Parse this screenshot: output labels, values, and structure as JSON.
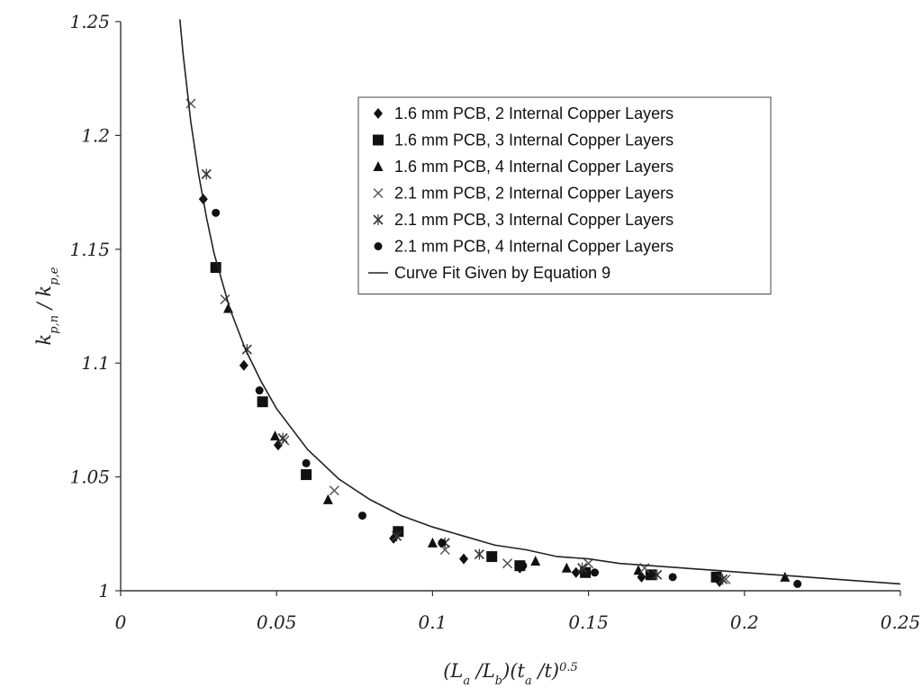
{
  "chart_data": {
    "type": "scatter",
    "title": "",
    "xlabel": {
      "parts": [
        "(L",
        "a",
        " /L",
        "b",
        ")(t",
        "a",
        " /t)",
        "0.5"
      ]
    },
    "ylabel": {
      "parts": [
        "k",
        "p,n",
        " / k",
        "p,e"
      ]
    },
    "xlim": [
      0,
      0.25
    ],
    "ylim": [
      1,
      1.25
    ],
    "x_ticks": [
      0,
      0.05,
      0.1,
      0.15,
      0.2,
      0.25
    ],
    "x_tick_labels": [
      "0",
      "0.05",
      "0.1",
      "0.15",
      "0.2",
      "0.25"
    ],
    "y_ticks": [
      1,
      1.05,
      1.1,
      1.15,
      1.2,
      1.25
    ],
    "y_tick_labels": [
      "1",
      "1.05",
      "1.1",
      "1.15",
      "1.2",
      "1.25"
    ],
    "grid": false,
    "legend_position": "top-right",
    "series": [
      {
        "name": "1.6 mm PCB, 2 Internal Copper Layers",
        "marker": "diamond",
        "points": [
          [
            0.0265,
            1.172
          ],
          [
            0.0395,
            1.099
          ],
          [
            0.0505,
            1.064
          ],
          [
            0.0875,
            1.023
          ],
          [
            0.11,
            1.014
          ],
          [
            0.128,
            1.01
          ],
          [
            0.146,
            1.008
          ],
          [
            0.167,
            1.006
          ],
          [
            0.192,
            1.004
          ]
        ]
      },
      {
        "name": "1.6 mm PCB, 3 Internal Copper Layers",
        "marker": "square",
        "points": [
          [
            0.0305,
            1.142
          ],
          [
            0.0455,
            1.083
          ],
          [
            0.0595,
            1.051
          ],
          [
            0.089,
            1.026
          ],
          [
            0.119,
            1.015
          ],
          [
            0.128,
            1.011
          ],
          [
            0.149,
            1.008
          ],
          [
            0.17,
            1.007
          ],
          [
            0.191,
            1.006
          ]
        ]
      },
      {
        "name": "1.6 mm PCB, 4 Internal Copper Layers",
        "marker": "triangle",
        "points": [
          [
            0.0345,
            1.124
          ],
          [
            0.0495,
            1.068
          ],
          [
            0.0665,
            1.04
          ],
          [
            0.1,
            1.021
          ],
          [
            0.133,
            1.013
          ],
          [
            0.143,
            1.01
          ],
          [
            0.166,
            1.009
          ],
          [
            0.213,
            1.006
          ]
        ]
      },
      {
        "name": "2.1 mm PCB, 2 Internal Copper Layers",
        "marker": "x",
        "points": [
          [
            0.0225,
            1.214
          ],
          [
            0.0335,
            1.128
          ],
          [
            0.0525,
            1.066
          ],
          [
            0.0685,
            1.044
          ],
          [
            0.104,
            1.018
          ],
          [
            0.124,
            1.012
          ],
          [
            0.15,
            1.012
          ],
          [
            0.168,
            1.01
          ],
          [
            0.194,
            1.005
          ]
        ]
      },
      {
        "name": "2.1 mm PCB, 3 Internal Copper Layers",
        "marker": "star",
        "points": [
          [
            0.0275,
            1.183
          ],
          [
            0.0405,
            1.106
          ],
          [
            0.052,
            1.067
          ],
          [
            0.0885,
            1.024
          ],
          [
            0.104,
            1.021
          ],
          [
            0.115,
            1.016
          ],
          [
            0.148,
            1.01
          ],
          [
            0.172,
            1.007
          ],
          [
            0.193,
            1.005
          ]
        ]
      },
      {
        "name": "2.1 mm PCB, 4 Internal Copper Layers",
        "marker": "dot",
        "points": [
          [
            0.0305,
            1.166
          ],
          [
            0.0445,
            1.088
          ],
          [
            0.0595,
            1.056
          ],
          [
            0.0775,
            1.033
          ],
          [
            0.103,
            1.021
          ],
          [
            0.129,
            1.011
          ],
          [
            0.152,
            1.008
          ],
          [
            0.177,
            1.006
          ],
          [
            0.217,
            1.003
          ]
        ]
      },
      {
        "name": "Curve Fit Given by Equation 9",
        "marker": "line",
        "points": [
          [
            0.019,
            1.251
          ],
          [
            0.02,
            1.236
          ],
          [
            0.0225,
            1.206
          ],
          [
            0.025,
            1.183
          ],
          [
            0.0275,
            1.164
          ],
          [
            0.03,
            1.148
          ],
          [
            0.035,
            1.124
          ],
          [
            0.04,
            1.106
          ],
          [
            0.045,
            1.092
          ],
          [
            0.05,
            1.08
          ],
          [
            0.06,
            1.062
          ],
          [
            0.07,
            1.049
          ],
          [
            0.08,
            1.04
          ],
          [
            0.09,
            1.033
          ],
          [
            0.1,
            1.028
          ],
          [
            0.11,
            1.024
          ],
          [
            0.12,
            1.02
          ],
          [
            0.13,
            1.018
          ],
          [
            0.14,
            1.015
          ],
          [
            0.15,
            1.014
          ],
          [
            0.16,
            1.012
          ],
          [
            0.17,
            1.011
          ],
          [
            0.18,
            1.01
          ],
          [
            0.19,
            1.009
          ],
          [
            0.2,
            1.008
          ],
          [
            0.21,
            1.007
          ],
          [
            0.22,
            1.006
          ],
          [
            0.23,
            1.005
          ],
          [
            0.24,
            1.004
          ],
          [
            0.25,
            1.003
          ]
        ]
      }
    ]
  }
}
